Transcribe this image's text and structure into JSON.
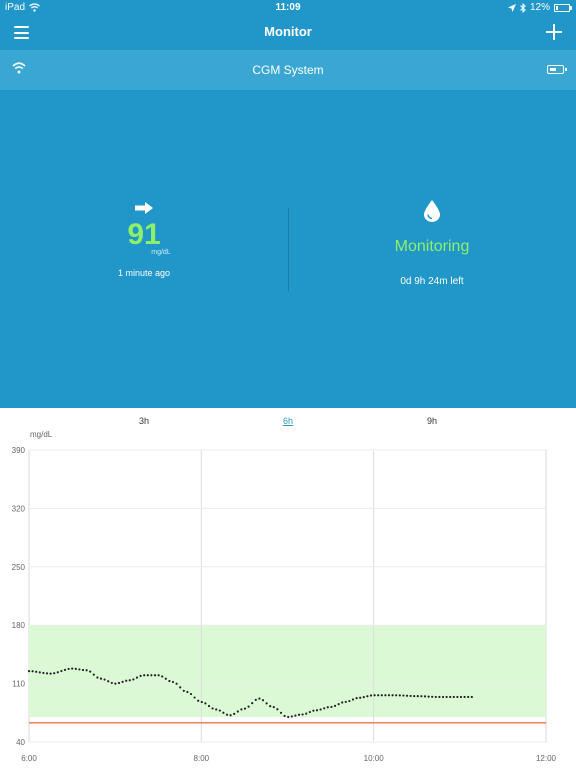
{
  "status_bar": {
    "device": "iPad",
    "time": "11:09",
    "battery": "12%"
  },
  "nav": {
    "title": "Monitor",
    "menu_icon": "hamburger-menu-icon",
    "add_icon": "plus-icon"
  },
  "device_bar": {
    "title": "CGM System",
    "left_icon": "wifi-icon",
    "right_icon": "battery-icon"
  },
  "reading": {
    "value": "91",
    "unit": "mg/dL",
    "time_ago": "1 minute ago",
    "trend_icon": "arrow-right-icon"
  },
  "sensor": {
    "status": "Monitoring",
    "time_left": "0d 9h 24m left",
    "icon": "water-drop-icon"
  },
  "colors": {
    "header": "#2196c8",
    "device_bar": "#3aa6d2",
    "accent_green": "#8ef06a",
    "range_band": "#dcf9d6",
    "low_line": "#f07050",
    "points": "#222222"
  },
  "range_tabs": [
    {
      "label": "3h",
      "active": false
    },
    {
      "label": "6h",
      "active": true
    },
    {
      "label": "9h",
      "active": false
    }
  ],
  "chart_data": {
    "type": "scatter",
    "ylabel": "mg/dL",
    "x_tick_labels": [
      "6:00",
      "8:00",
      "10:00",
      "12:00"
    ],
    "y_tick_labels": [
      "390",
      "320",
      "250",
      "180",
      "110",
      "40"
    ],
    "xlim": [
      6,
      12
    ],
    "ylim": [
      40,
      390
    ],
    "target_range": [
      70,
      180
    ],
    "low_threshold": 63,
    "x": [
      6.0,
      6.25,
      6.5,
      6.67,
      6.83,
      7.0,
      7.17,
      7.33,
      7.5,
      7.67,
      7.83,
      8.0,
      8.17,
      8.33,
      8.5,
      8.67,
      8.83,
      9.0,
      9.17,
      9.33,
      9.5,
      9.67,
      9.83,
      10.0,
      10.25,
      10.5,
      10.75,
      11.0,
      11.17
    ],
    "y": [
      125,
      122,
      128,
      126,
      116,
      110,
      114,
      120,
      120,
      112,
      100,
      88,
      79,
      72,
      80,
      92,
      82,
      70,
      73,
      78,
      82,
      88,
      93,
      96,
      96,
      95,
      94,
      94,
      94
    ],
    "grid": true
  }
}
